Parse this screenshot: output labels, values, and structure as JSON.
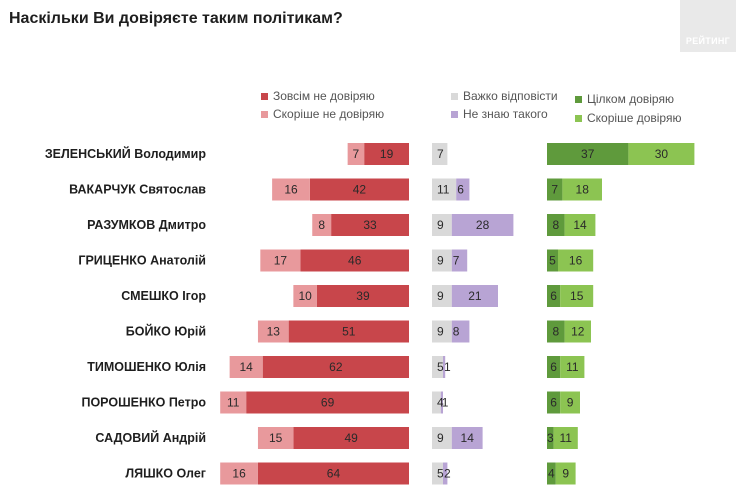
{
  "title": "Наскільки Ви довіряєте таким політикам?",
  "logo": "РЕЙТИНГ",
  "colors": {
    "distrust_full": "#c8464b",
    "distrust_rather": "#e8999c",
    "hard_to_say": "#d9d9d9",
    "dont_know": "#b8a4d4",
    "trust_full": "#5f9a3c",
    "trust_rather": "#8cc452"
  },
  "chart_data": {
    "type": "bar",
    "title": "Наскільки Ви довіряєте таким політикам?",
    "categories": [
      "ЗЕЛЕНСЬКИЙ Володимир",
      "ВАКАРЧУК Святослав",
      "РАЗУМКОВ Дмитро",
      "ГРИЦЕНКО Анатолій",
      "СМЕШКО Ігор",
      "БОЙКО Юрій",
      "ТИМОШЕНКО Юлія",
      "ПОРОШЕНКО Петро",
      "САДОВИЙ Андрій",
      "ЛЯШКО Олег"
    ],
    "series": [
      {
        "name": "Зовсім не довіряю",
        "values": [
          19,
          42,
          33,
          46,
          39,
          51,
          62,
          69,
          49,
          64
        ]
      },
      {
        "name": "Скоріше не довіряю",
        "values": [
          7,
          16,
          8,
          17,
          10,
          13,
          14,
          11,
          15,
          16
        ]
      },
      {
        "name": "Важко відповісти",
        "values": [
          7,
          11,
          9,
          9,
          9,
          9,
          5,
          4,
          9,
          5
        ]
      },
      {
        "name": "Не знаю такого",
        "values": [
          0,
          6,
          28,
          7,
          21,
          8,
          1,
          1,
          14,
          2
        ]
      },
      {
        "name": "Цілком довіряю",
        "values": [
          37,
          7,
          8,
          5,
          6,
          8,
          6,
          6,
          3,
          4
        ]
      },
      {
        "name": "Скоріше довіряю",
        "values": [
          30,
          18,
          14,
          16,
          15,
          12,
          11,
          9,
          11,
          9
        ]
      }
    ],
    "grid": false
  }
}
